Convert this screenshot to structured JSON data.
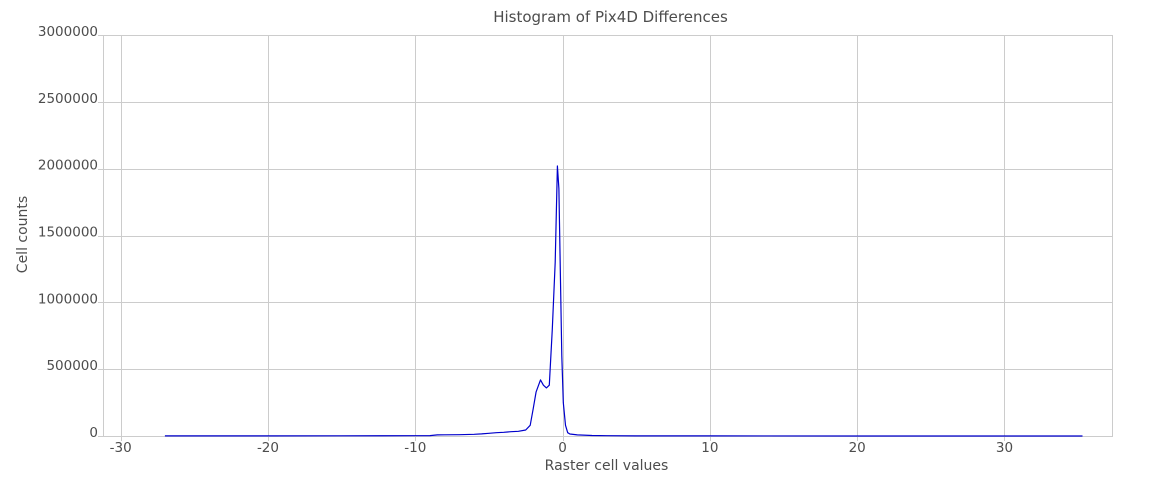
{
  "chart_data": {
    "type": "line",
    "title": "Histogram of Pix4D Differences",
    "xlabel": "Raster cell values",
    "ylabel": "Cell counts",
    "xlim": [
      -31.2,
      37.3
    ],
    "ylim": [
      0,
      3000000
    ],
    "x_ticks": [
      -30,
      -20,
      -10,
      0,
      10,
      20,
      30
    ],
    "x_tick_labels": [
      "-30",
      "-20",
      "-10",
      "0",
      "10",
      "20",
      "30"
    ],
    "y_ticks": [
      0,
      500000,
      1000000,
      1500000,
      2000000,
      2500000,
      3000000
    ],
    "y_tick_labels": [
      "0",
      "500000",
      "1000000",
      "1500000",
      "2000000",
      "2500000",
      "3000000"
    ],
    "grid": true,
    "legend": false,
    "series": [
      {
        "color": "#0000cc",
        "x": [
          -27,
          -20,
          -15,
          -10,
          -9,
          -8.5,
          -8,
          -7,
          -6,
          -5.5,
          -5,
          -4.5,
          -4,
          -3.5,
          -3,
          -2.5,
          -2.2,
          -2.0,
          -1.8,
          -1.5,
          -1.3,
          -1.1,
          -0.9,
          -0.7,
          -0.5,
          -0.35,
          -0.25,
          -0.15,
          -0.05,
          0.05,
          0.2,
          0.35,
          0.5,
          1.0,
          2.0,
          3.0,
          5,
          10,
          20,
          30,
          35.3
        ],
        "y": [
          1000,
          1000,
          1500,
          2000,
          3000,
          8000,
          9000,
          10000,
          13000,
          16000,
          20000,
          25000,
          28000,
          32000,
          35000,
          45000,
          80000,
          200000,
          330000,
          420000,
          380000,
          360000,
          380000,
          800000,
          1300000,
          2020000,
          1850000,
          1200000,
          600000,
          250000,
          80000,
          25000,
          15000,
          8000,
          4000,
          2000,
          1000,
          500,
          300,
          200,
          100
        ]
      }
    ]
  }
}
